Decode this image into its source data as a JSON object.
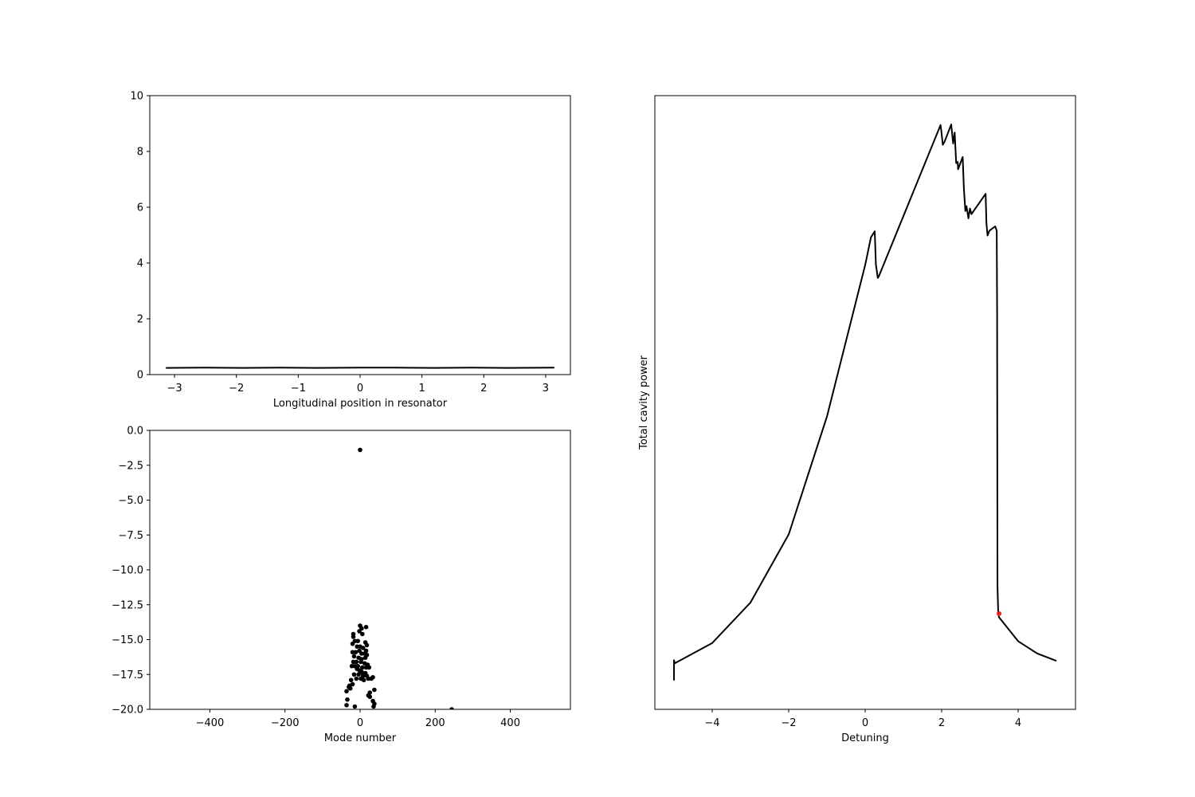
{
  "chart_data": [
    {
      "type": "line",
      "xlabel": "Longitudinal position in resonator",
      "ylabel": "",
      "xlim": [
        -3.4,
        3.4
      ],
      "ylim": [
        0,
        10
      ],
      "xticks": [
        -3,
        -2,
        -1,
        0,
        1,
        2,
        3
      ],
      "yticks": [
        0,
        2,
        4,
        6,
        8,
        10
      ],
      "series": [
        {
          "color": "#000000",
          "x": [
            -3.14,
            -2.5,
            -1.9,
            -1.3,
            -0.7,
            0.0,
            0.6,
            1.2,
            1.8,
            2.4,
            3.14
          ],
          "y": [
            0.24,
            0.25,
            0.24,
            0.25,
            0.24,
            0.25,
            0.25,
            0.24,
            0.25,
            0.24,
            0.25
          ]
        }
      ]
    },
    {
      "type": "scatter",
      "xlabel": "Mode number",
      "ylabel": "",
      "xlim": [
        -560,
        560
      ],
      "ylim": [
        -20,
        0
      ],
      "xticks": [
        -400,
        -200,
        0,
        200,
        400
      ],
      "yticks": [
        0.0,
        -2.5,
        -5.0,
        -7.5,
        -10.0,
        -12.5,
        -15.0,
        -17.5,
        -20.0
      ],
      "ytick_labels": [
        "0.0",
        "−2.5",
        "−5.0",
        "−7.5",
        "−10.0",
        "−12.5",
        "−15.0",
        "−17.5",
        "−20.0"
      ],
      "series": [
        {
          "color": "#000000",
          "x": [
            0,
            16,
            0,
            4,
            -2,
            6,
            -18,
            -18,
            -14,
            -6,
            14,
            18,
            -20,
            -8,
            0,
            8,
            16,
            -20,
            -12,
            -2,
            4,
            12,
            18,
            -16,
            -4,
            4,
            14,
            -18,
            -10,
            2,
            12,
            20,
            -14,
            -6,
            6,
            16,
            -22,
            -8,
            4,
            14,
            -16,
            -4,
            8,
            18,
            24,
            -10,
            2,
            10,
            -2,
            8,
            22,
            -24,
            -20,
            34,
            30,
            26,
            -30,
            -26,
            -36,
            -28,
            38,
            -34,
            22,
            26,
            34,
            -36,
            -14,
            38,
            36,
            244
          ],
          "y": [
            -1.4,
            -14.1,
            -14.0,
            -14.2,
            -14.4,
            -14.6,
            -14.6,
            -14.8,
            -15.1,
            -15.1,
            -15.2,
            -15.4,
            -15.3,
            -15.5,
            -15.5,
            -15.6,
            -15.8,
            -15.9,
            -15.9,
            -15.8,
            -16.0,
            -16.0,
            -16.1,
            -16.2,
            -16.3,
            -16.4,
            -16.3,
            -16.6,
            -16.6,
            -16.6,
            -16.7,
            -16.8,
            -16.9,
            -16.9,
            -17.0,
            -17.0,
            -16.9,
            -17.1,
            -17.3,
            -17.4,
            -17.5,
            -17.5,
            -17.6,
            -17.6,
            -17.0,
            -17.8,
            -17.8,
            -17.9,
            -17.2,
            -17.5,
            -17.8,
            -17.9,
            -18.2,
            -17.7,
            -17.8,
            -18.8,
            -18.4,
            -18.5,
            -18.7,
            -18.3,
            -18.6,
            -19.3,
            -19.0,
            -19.1,
            -19.4,
            -19.7,
            -19.8,
            -19.6,
            -19.8,
            -20.0
          ]
        }
      ]
    },
    {
      "type": "line",
      "xlabel": "Detuning",
      "ylabel": "Total cavity power",
      "xlim": [
        -5.5,
        5.5
      ],
      "ylim": [
        0,
        100
      ],
      "show_yticks": false,
      "xticks": [
        -4,
        -2,
        0,
        2,
        4
      ],
      "xtick_labels": [
        "−4",
        "−2",
        "0",
        "2",
        "4"
      ],
      "series": [
        {
          "color": "#000000",
          "x": [
            -5.0,
            -5.0,
            -4.98,
            -4.0,
            -3.0,
            -2.0,
            -1.0,
            0.0,
            0.15,
            0.25,
            0.28,
            0.33,
            0.36,
            1.97,
            1.99,
            2.03,
            2.07,
            2.25,
            2.3,
            2.34,
            2.38,
            2.42,
            2.43,
            2.55,
            2.58,
            2.62,
            2.65,
            2.7,
            2.74,
            2.78,
            3.15,
            3.17,
            3.2,
            3.25,
            3.4,
            3.44,
            3.45,
            3.46,
            3.48,
            3.5,
            4.0,
            4.5,
            5.0
          ],
          "y": [
            4.7,
            8.0,
            7.5,
            10.8,
            17.4,
            28.5,
            47.7,
            72.4,
            76.9,
            77.9,
            72.5,
            70.3,
            70.6,
            95.2,
            94.3,
            92.0,
            92.4,
            95.3,
            92.2,
            94.0,
            89.0,
            89.2,
            88.0,
            90.0,
            85.0,
            81.2,
            82.0,
            80.0,
            81.6,
            80.7,
            84.0,
            79.3,
            77.2,
            78.0,
            78.7,
            78.0,
            65.0,
            20.0,
            15.6,
            15.0,
            11.1,
            9.1,
            7.9
          ]
        }
      ],
      "highlight_point": {
        "x": 3.5,
        "y": 15.6,
        "color": "#e8221a"
      }
    }
  ]
}
